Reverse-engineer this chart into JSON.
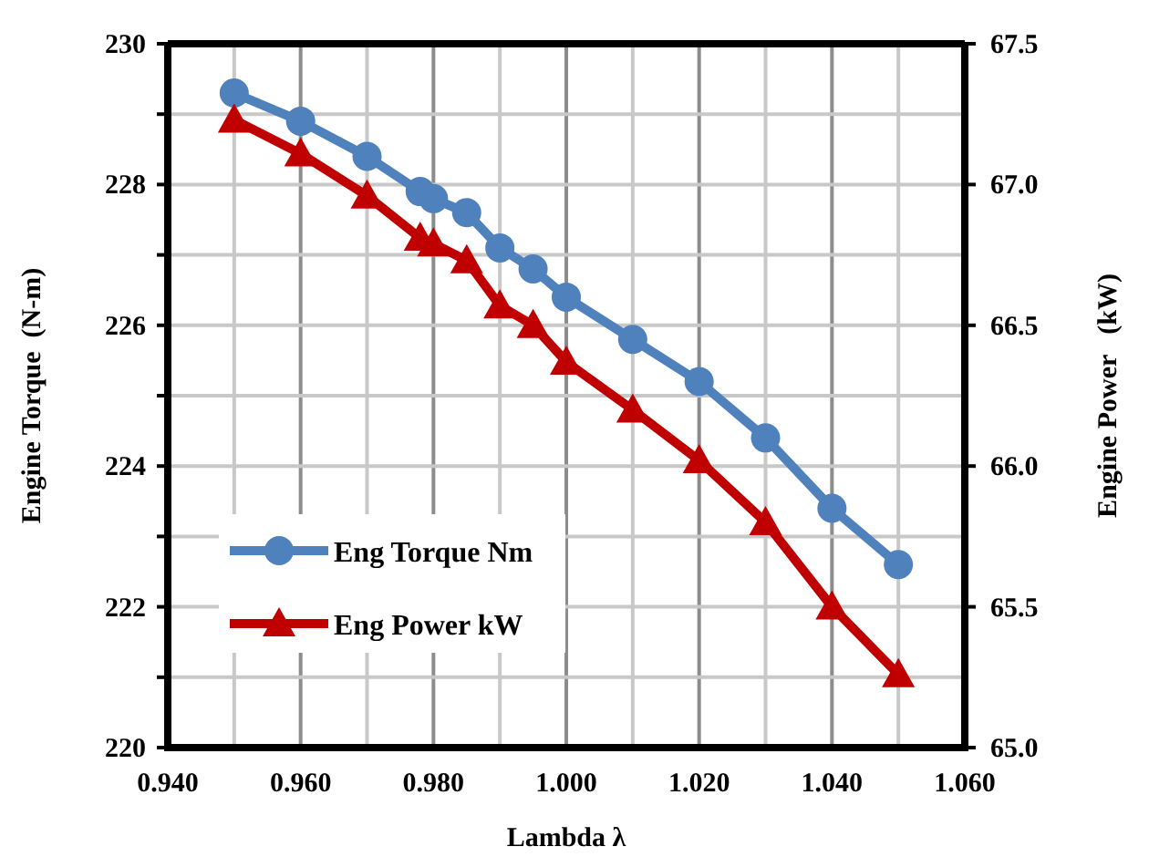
{
  "chart_data": {
    "type": "line",
    "xlabel": "Lambda λ",
    "ylabel": "Engine Torque  (N-m)",
    "y2label": "Engine Power   (kW)",
    "x": [
      0.95,
      0.96,
      0.97,
      0.978,
      0.98,
      0.985,
      0.99,
      0.995,
      1.0,
      1.01,
      1.02,
      1.03,
      1.04,
      1.05
    ],
    "series": [
      {
        "name": "Eng Torque Nm",
        "color": "#4f81bd",
        "marker": "circle",
        "values": [
          229.3,
          228.9,
          228.4,
          227.9,
          227.8,
          227.6,
          227.1,
          226.8,
          226.4,
          225.8,
          225.2,
          224.4,
          223.4,
          222.6
        ]
      },
      {
        "name": "Eng Power kW",
        "color": "#c00000",
        "marker": "triangle",
        "axis": "y2",
        "values": [
          67.23,
          67.11,
          66.96,
          66.81,
          66.79,
          66.73,
          66.57,
          66.5,
          66.37,
          66.2,
          66.02,
          65.8,
          65.5,
          65.26
        ]
      }
    ],
    "xlim": [
      0.94,
      1.06
    ],
    "xticks": [
      {
        "value": 0.94,
        "label": "0.940"
      },
      {
        "value": 0.95,
        "label": null
      },
      {
        "value": 0.96,
        "label": "0.960"
      },
      {
        "value": 0.97,
        "label": null
      },
      {
        "value": 0.98,
        "label": "0.980"
      },
      {
        "value": 0.99,
        "label": null
      },
      {
        "value": 1.0,
        "label": "1.000"
      },
      {
        "value": 1.01,
        "label": null
      },
      {
        "value": 1.02,
        "label": "1.020"
      },
      {
        "value": 1.03,
        "label": null
      },
      {
        "value": 1.04,
        "label": "1.040"
      },
      {
        "value": 1.05,
        "label": null
      },
      {
        "value": 1.06,
        "label": "1.060"
      }
    ],
    "ylim": [
      220,
      230
    ],
    "yticks": [
      220,
      {
        "value": 221,
        "label": null
      },
      222,
      {
        "value": 223,
        "label": null
      },
      224,
      {
        "value": 225,
        "label": null
      },
      226,
      {
        "value": 227,
        "label": null
      },
      228,
      {
        "value": 229,
        "label": null
      },
      230
    ],
    "y2lim": [
      65.0,
      67.5
    ],
    "y2ticks": [
      {
        "value": 65.0,
        "label": "65.0"
      },
      {
        "value": 65.5,
        "label": "65.5"
      },
      {
        "value": 66.0,
        "label": "66.0"
      },
      {
        "value": 66.5,
        "label": "66.5"
      },
      {
        "value": 67.0,
        "label": "67.0"
      },
      {
        "value": 67.5,
        "label": "67.5"
      }
    ],
    "grid": true,
    "legend": "bottom left"
  }
}
